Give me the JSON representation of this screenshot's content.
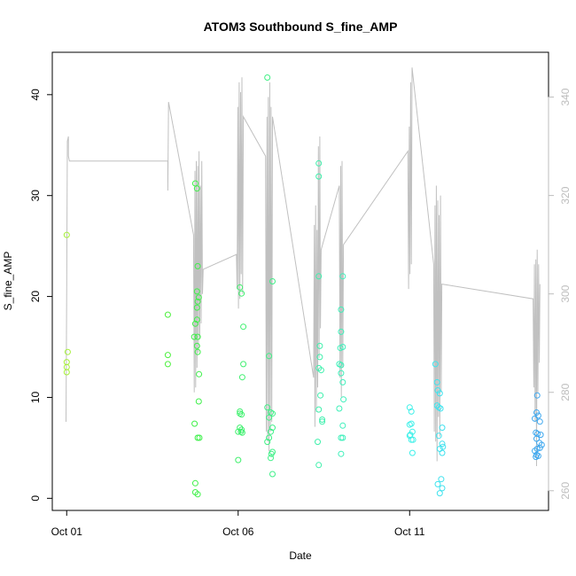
{
  "chart_data": {
    "type": "scatter",
    "title": "ATOM3 Southbound S_fine_AMP",
    "xlabel": "Date",
    "ylabel": "S_fine_AMP",
    "x_ticks": [
      {
        "day": 1,
        "label": "Oct 01"
      },
      {
        "day": 6,
        "label": "Oct 06"
      },
      {
        "day": 11,
        "label": "Oct 11"
      }
    ],
    "x_range_days": [
      0.58,
      15.05
    ],
    "ylim": [
      -1.2,
      44.2
    ],
    "y_ticks": [
      0,
      10,
      20,
      30,
      40
    ],
    "right_axis": {
      "ylim": [
        256.0,
        349.1
      ],
      "ticks": [
        260,
        280,
        300,
        320,
        340
      ],
      "color": "#bdbdbd"
    },
    "grid": false,
    "legend": "none",
    "color_scale": [
      "#a6f039",
      "#3ff03f",
      "#3ff0a0",
      "#3ff0ee",
      "#3fa8ef"
    ],
    "series": [
      {
        "marker": "open-circle",
        "points": [
          [
            1.0,
            26.1
          ],
          [
            1.0,
            13.5
          ],
          [
            1.03,
            14.5
          ],
          [
            1.0,
            12.5
          ],
          [
            1.0,
            13.0
          ],
          [
            3.95,
            18.2
          ],
          [
            3.95,
            14.2
          ],
          [
            3.95,
            13.3
          ],
          [
            4.75,
            31.2
          ],
          [
            4.8,
            30.7
          ],
          [
            4.82,
            23.0
          ],
          [
            4.8,
            20.5
          ],
          [
            4.85,
            19.9
          ],
          [
            4.8,
            18.9
          ],
          [
            4.82,
            19.5
          ],
          [
            4.8,
            17.7
          ],
          [
            4.75,
            17.3
          ],
          [
            4.82,
            16.0
          ],
          [
            4.72,
            16.0
          ],
          [
            4.8,
            15.1
          ],
          [
            4.82,
            14.5
          ],
          [
            4.86,
            12.3
          ],
          [
            4.85,
            9.6
          ],
          [
            4.73,
            7.4
          ],
          [
            4.82,
            6.0
          ],
          [
            4.87,
            6.0
          ],
          [
            4.75,
            1.5
          ],
          [
            4.75,
            0.6
          ],
          [
            4.82,
            0.4
          ],
          [
            6.05,
            20.9
          ],
          [
            6.1,
            20.3
          ],
          [
            6.15,
            17.0
          ],
          [
            6.15,
            13.3
          ],
          [
            6.12,
            12.0
          ],
          [
            6.05,
            8.6
          ],
          [
            6.1,
            8.3
          ],
          [
            6.05,
            8.4
          ],
          [
            6.05,
            7.0
          ],
          [
            6.08,
            6.6
          ],
          [
            6.1,
            6.8
          ],
          [
            6.0,
            6.6
          ],
          [
            6.12,
            6.5
          ],
          [
            6.0,
            3.8
          ],
          [
            6.85,
            41.7
          ],
          [
            7.0,
            21.5
          ],
          [
            6.9,
            14.1
          ],
          [
            6.85,
            9.0
          ],
          [
            6.95,
            8.5
          ],
          [
            7.0,
            8.4
          ],
          [
            6.9,
            8.0
          ],
          [
            7.0,
            7.0
          ],
          [
            6.95,
            6.6
          ],
          [
            6.9,
            6.0
          ],
          [
            6.85,
            5.6
          ],
          [
            7.0,
            4.6
          ],
          [
            6.97,
            4.4
          ],
          [
            6.95,
            4.0
          ],
          [
            7.0,
            2.4
          ],
          [
            8.35,
            33.2
          ],
          [
            8.35,
            31.9
          ],
          [
            8.35,
            22.0
          ],
          [
            8.38,
            15.1
          ],
          [
            8.38,
            14.0
          ],
          [
            8.42,
            12.7
          ],
          [
            8.35,
            12.9
          ],
          [
            8.4,
            10.2
          ],
          [
            8.35,
            8.8
          ],
          [
            8.45,
            7.8
          ],
          [
            8.45,
            7.6
          ],
          [
            8.32,
            5.6
          ],
          [
            8.35,
            3.3
          ],
          [
            9.05,
            22.0
          ],
          [
            9.0,
            18.7
          ],
          [
            9.0,
            16.5
          ],
          [
            9.05,
            15.0
          ],
          [
            8.98,
            14.9
          ],
          [
            8.95,
            13.3
          ],
          [
            9.0,
            13.2
          ],
          [
            9.0,
            12.4
          ],
          [
            9.05,
            11.5
          ],
          [
            9.07,
            9.8
          ],
          [
            8.95,
            8.9
          ],
          [
            9.05,
            7.2
          ],
          [
            9.0,
            6.0
          ],
          [
            9.05,
            6.0
          ],
          [
            9.0,
            4.4
          ],
          [
            11.0,
            9.0
          ],
          [
            11.05,
            8.6
          ],
          [
            11.05,
            7.4
          ],
          [
            11.0,
            7.3
          ],
          [
            11.08,
            6.6
          ],
          [
            11.02,
            6.3
          ],
          [
            11.0,
            6.2
          ],
          [
            11.1,
            5.8
          ],
          [
            11.05,
            5.8
          ],
          [
            11.08,
            4.5
          ],
          [
            11.75,
            13.3
          ],
          [
            11.8,
            11.5
          ],
          [
            11.82,
            10.7
          ],
          [
            11.88,
            10.4
          ],
          [
            11.8,
            9.2
          ],
          [
            11.85,
            9.0
          ],
          [
            11.9,
            8.9
          ],
          [
            11.95,
            7.0
          ],
          [
            11.85,
            6.2
          ],
          [
            11.95,
            5.4
          ],
          [
            11.97,
            5.1
          ],
          [
            11.88,
            4.9
          ],
          [
            11.95,
            4.5
          ],
          [
            11.92,
            1.9
          ],
          [
            11.82,
            1.4
          ],
          [
            11.95,
            1.0
          ],
          [
            11.88,
            0.5
          ],
          [
            14.72,
            10.2
          ],
          [
            14.7,
            8.5
          ],
          [
            14.75,
            8.2
          ],
          [
            14.8,
            7.6
          ],
          [
            14.65,
            7.9
          ],
          [
            14.68,
            6.5
          ],
          [
            14.73,
            6.4
          ],
          [
            14.82,
            6.3
          ],
          [
            14.7,
            5.9
          ],
          [
            14.78,
            5.5
          ],
          [
            14.85,
            5.3
          ],
          [
            14.8,
            5.0
          ],
          [
            14.72,
            4.9
          ],
          [
            14.65,
            4.7
          ],
          [
            14.7,
            4.3
          ],
          [
            14.75,
            4.2
          ],
          [
            14.68,
            4.1
          ]
        ]
      },
      {
        "axis": "right",
        "style": "line",
        "color": "#c0c0c0",
        "points": [
          [
            0.98,
            274
          ],
          [
            1.0,
            302
          ],
          [
            1.02,
            331
          ],
          [
            1.05,
            332
          ],
          [
            1.05,
            328
          ],
          [
            1.08,
            327
          ],
          [
            3.95,
            327
          ],
          [
            3.95,
            321
          ],
          [
            3.97,
            339
          ],
          [
            4.7,
            312
          ],
          [
            4.72,
            280
          ],
          [
            4.74,
            325
          ],
          [
            4.76,
            281
          ],
          [
            4.78,
            327
          ],
          [
            4.8,
            285
          ],
          [
            4.82,
            326
          ],
          [
            4.84,
            288
          ],
          [
            4.86,
            329
          ],
          [
            4.88,
            291
          ],
          [
            4.9,
            322
          ],
          [
            4.92,
            294
          ],
          [
            4.94,
            327
          ],
          [
            4.96,
            300
          ],
          [
            4.98,
            305
          ],
          [
            5.95,
            308
          ],
          [
            5.97,
            301
          ],
          [
            5.99,
            338
          ],
          [
            6.01,
            297
          ],
          [
            6.03,
            343
          ],
          [
            6.05,
            299
          ],
          [
            6.07,
            341
          ],
          [
            6.09,
            304
          ],
          [
            6.11,
            344
          ],
          [
            6.13,
            300
          ],
          [
            6.15,
            336
          ],
          [
            6.8,
            328
          ],
          [
            6.82,
            272
          ],
          [
            6.84,
            336
          ],
          [
            6.86,
            270
          ],
          [
            6.88,
            340
          ],
          [
            6.9,
            268
          ],
          [
            6.92,
            343
          ],
          [
            6.94,
            272
          ],
          [
            6.96,
            338
          ],
          [
            6.98,
            274
          ],
          [
            7.0,
            336
          ],
          [
            8.2,
            283
          ],
          [
            8.22,
            314
          ],
          [
            8.24,
            273
          ],
          [
            8.26,
            318
          ],
          [
            8.28,
            276
          ],
          [
            8.3,
            313
          ],
          [
            8.32,
            281
          ],
          [
            8.34,
            330
          ],
          [
            8.36,
            287
          ],
          [
            8.38,
            332
          ],
          [
            8.4,
            293
          ],
          [
            8.42,
            309
          ],
          [
            8.95,
            322
          ],
          [
            8.97,
            283
          ],
          [
            8.99,
            326
          ],
          [
            9.01,
            279
          ],
          [
            9.03,
            327
          ],
          [
            9.05,
            285
          ],
          [
            9.07,
            310
          ],
          [
            10.95,
            329
          ],
          [
            10.97,
            301
          ],
          [
            10.99,
            334
          ],
          [
            11.01,
            304
          ],
          [
            11.03,
            343
          ],
          [
            11.05,
            306
          ],
          [
            11.07,
            346
          ],
          [
            11.7,
            306
          ],
          [
            11.72,
            272
          ],
          [
            11.74,
            318
          ],
          [
            11.76,
            270
          ],
          [
            11.78,
            322
          ],
          [
            11.8,
            266
          ],
          [
            11.82,
            319
          ],
          [
            11.84,
            275
          ],
          [
            11.86,
            316
          ],
          [
            11.88,
            271
          ],
          [
            11.9,
            320
          ],
          [
            11.92,
            280
          ],
          [
            11.94,
            302
          ],
          [
            14.6,
            299
          ],
          [
            14.62,
            281
          ],
          [
            14.64,
            306
          ],
          [
            14.66,
            274
          ],
          [
            14.68,
            307
          ],
          [
            14.7,
            265
          ],
          [
            14.72,
            309
          ],
          [
            14.74,
            280
          ],
          [
            14.76,
            306
          ],
          [
            14.78,
            286
          ],
          [
            14.8,
            302
          ]
        ]
      }
    ]
  }
}
